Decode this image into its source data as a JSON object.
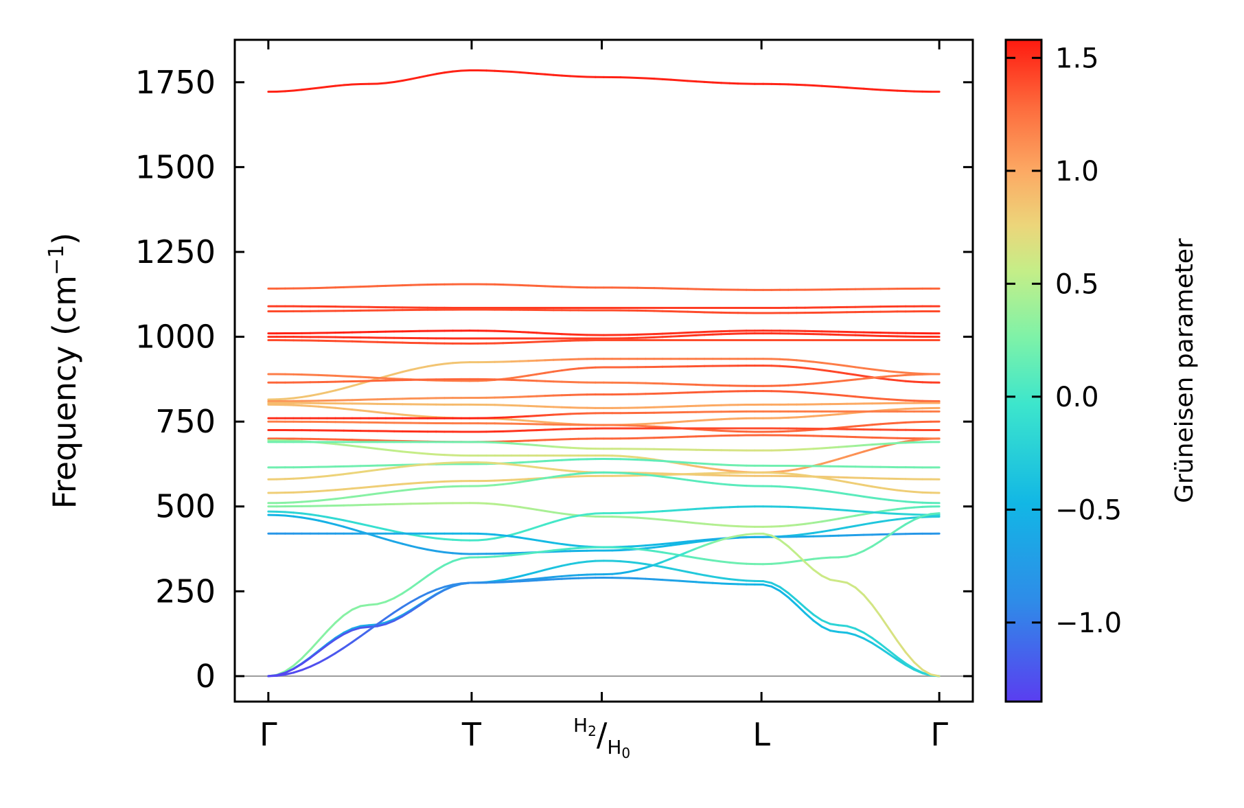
{
  "chart_data": {
    "type": "line",
    "title": "",
    "xlabel": "",
    "ylabel": "Frequency (cm",
    "ylabel_superscript": "−1",
    "ylabel_close": ")",
    "ylim": [
      -75,
      1875
    ],
    "yticks": [
      0,
      250,
      500,
      750,
      1000,
      1250,
      1500,
      1750
    ],
    "ytick_labels": [
      "0",
      "250",
      "500",
      "750",
      "1000",
      "1250",
      "1500",
      "1750"
    ],
    "xlim": [
      -0.05,
      1.05
    ],
    "x_labels": [
      {
        "pos": 0.0,
        "text": "Γ"
      },
      {
        "pos": 0.303,
        "text": "T"
      },
      {
        "pos": 0.497,
        "main": "H",
        "sub": "2",
        "slash": "/",
        "main2": "H",
        "sub2": "0"
      },
      {
        "pos": 0.735,
        "text": "L"
      },
      {
        "pos": 1.0,
        "text": "Γ"
      }
    ],
    "zero_line": 0,
    "colorbar": {
      "label": "Grüneisen parameter",
      "range": [
        -1.35,
        1.58
      ],
      "ticks": [
        -1.0,
        -0.5,
        0.0,
        0.5,
        1.0,
        1.5
      ],
      "tick_labels": [
        "−1.0",
        "−0.5",
        "0.0",
        "0.5",
        "1.0",
        "1.5"
      ],
      "colormap": "rainbow"
    },
    "series": [
      {
        "name": "band-top",
        "x": [
          0,
          0.15,
          0.303,
          0.5,
          0.735,
          1.0
        ],
        "y": [
          1722,
          1745,
          1785,
          1765,
          1745,
          1722
        ],
        "g": [
          1.55,
          1.55,
          1.55,
          1.55,
          1.55,
          1.55
        ]
      },
      {
        "name": "band-1140",
        "x": [
          0,
          0.303,
          0.5,
          0.735,
          1.0
        ],
        "y": [
          1142,
          1155,
          1145,
          1138,
          1142
        ],
        "g": [
          1.3,
          1.3,
          1.3,
          1.3,
          1.3
        ]
      },
      {
        "name": "band-1090",
        "x": [
          0,
          0.303,
          0.5,
          0.735,
          1.0
        ],
        "y": [
          1090,
          1085,
          1085,
          1085,
          1090
        ],
        "g": [
          1.45,
          1.45,
          1.45,
          1.45,
          1.45
        ]
      },
      {
        "name": "band-1075",
        "x": [
          0,
          0.303,
          0.5,
          0.735,
          1.0
        ],
        "y": [
          1075,
          1080,
          1078,
          1070,
          1075
        ],
        "g": [
          1.4,
          1.4,
          1.4,
          1.4,
          1.4
        ]
      },
      {
        "name": "band-1010",
        "x": [
          0,
          0.303,
          0.5,
          0.735,
          1.0
        ],
        "y": [
          1010,
          1018,
          1005,
          1018,
          1010
        ],
        "g": [
          1.55,
          1.55,
          1.5,
          1.5,
          1.55
        ]
      },
      {
        "name": "band-1000",
        "x": [
          0,
          0.303,
          0.5,
          0.735,
          1.0
        ],
        "y": [
          1000,
          995,
          995,
          1010,
          1000
        ],
        "g": [
          1.5,
          1.5,
          1.45,
          1.5,
          1.5
        ]
      },
      {
        "name": "band-990",
        "x": [
          0,
          0.303,
          0.5,
          0.735,
          1.0
        ],
        "y": [
          990,
          980,
          990,
          990,
          990
        ],
        "g": [
          1.4,
          1.4,
          1.4,
          1.4,
          1.4
        ]
      },
      {
        "name": "band-930",
        "x": [
          0,
          0.303,
          0.5,
          0.735,
          1.0
        ],
        "y": [
          815,
          925,
          935,
          935,
          890
        ],
        "g": [
          0.85,
          0.85,
          1.2,
          1.2,
          1.2
        ]
      },
      {
        "name": "band-890",
        "x": [
          0,
          0.303,
          0.5,
          0.735,
          1.0
        ],
        "y": [
          890,
          870,
          910,
          915,
          865
        ],
        "g": [
          1.2,
          1.2,
          1.3,
          1.4,
          1.45
        ]
      },
      {
        "name": "band-865",
        "x": [
          0,
          0.303,
          0.5,
          0.735,
          1.0
        ],
        "y": [
          865,
          875,
          865,
          855,
          890
        ],
        "g": [
          1.3,
          1.3,
          1.2,
          1.3,
          1.2
        ]
      },
      {
        "name": "band-810",
        "x": [
          0,
          0.303,
          0.5,
          0.735,
          1.0
        ],
        "y": [
          810,
          820,
          830,
          840,
          810
        ],
        "g": [
          1.1,
          1.1,
          1.3,
          1.35,
          1.3
        ]
      },
      {
        "name": "band-805",
        "x": [
          0,
          0.303,
          0.5,
          0.735,
          1.0
        ],
        "y": [
          805,
          800,
          790,
          800,
          805
        ],
        "g": [
          0.9,
          0.9,
          1.0,
          1.0,
          1.0
        ]
      },
      {
        "name": "band-795",
        "x": [
          0,
          0.303,
          0.5,
          0.735,
          1.0
        ],
        "y": [
          800,
          760,
          740,
          760,
          790
        ],
        "g": [
          0.9,
          0.9,
          1.0,
          1.0,
          1.0
        ]
      },
      {
        "name": "band-760",
        "x": [
          0,
          0.303,
          0.5,
          0.735,
          1.0
        ],
        "y": [
          760,
          760,
          775,
          780,
          780
        ],
        "g": [
          1.5,
          1.55,
          1.3,
          1.2,
          1.2
        ]
      },
      {
        "name": "band-750",
        "x": [
          0,
          0.303,
          0.5,
          0.735,
          1.0
        ],
        "y": [
          750,
          745,
          740,
          720,
          750
        ],
        "g": [
          1.2,
          1.2,
          1.2,
          1.3,
          1.3
        ]
      },
      {
        "name": "band-725",
        "x": [
          0,
          0.303,
          0.5,
          0.735,
          1.0
        ],
        "y": [
          725,
          720,
          730,
          730,
          725
        ],
        "g": [
          1.5,
          1.5,
          1.45,
          1.4,
          1.4
        ]
      },
      {
        "name": "band-700",
        "x": [
          0,
          0.303,
          0.5,
          0.735,
          1.0
        ],
        "y": [
          700,
          690,
          700,
          710,
          700
        ],
        "g": [
          1.3,
          1.3,
          1.3,
          1.3,
          1.3
        ]
      },
      {
        "name": "band-695",
        "x": [
          0,
          0.303,
          0.5,
          0.735,
          1.0
        ],
        "y": [
          695,
          650,
          650,
          600,
          700
        ],
        "g": [
          0.4,
          0.6,
          0.7,
          1.0,
          1.2
        ]
      },
      {
        "name": "band-690",
        "x": [
          0,
          0.303,
          0.5,
          0.735,
          1.0
        ],
        "y": [
          690,
          690,
          670,
          665,
          690
        ],
        "g": [
          0.2,
          0.2,
          0.6,
          0.65,
          0.2
        ]
      },
      {
        "name": "band-610",
        "x": [
          0,
          0.303,
          0.5,
          0.735,
          1.0
        ],
        "y": [
          615,
          625,
          640,
          620,
          615
        ],
        "g": [
          0.2,
          0.2,
          0.1,
          0.2,
          0.2
        ]
      },
      {
        "name": "band-580",
        "x": [
          0,
          0.303,
          0.5,
          0.735,
          1.0
        ],
        "y": [
          580,
          630,
          600,
          590,
          580
        ],
        "g": [
          0.8,
          0.7,
          0.8,
          0.85,
          0.8
        ]
      },
      {
        "name": "band-540",
        "x": [
          0,
          0.303,
          0.5,
          0.735,
          1.0
        ],
        "y": [
          540,
          575,
          590,
          600,
          540
        ],
        "g": [
          0.8,
          0.8,
          0.8,
          0.8,
          0.8
        ]
      },
      {
        "name": "band-510",
        "x": [
          0,
          0.303,
          0.5,
          0.735,
          1.0
        ],
        "y": [
          510,
          560,
          600,
          560,
          510
        ],
        "g": [
          0.3,
          0.3,
          0.1,
          0.1,
          0.1
        ]
      },
      {
        "name": "band-500",
        "x": [
          0,
          0.303,
          0.5,
          0.735,
          1.0
        ],
        "y": [
          500,
          510,
          470,
          440,
          500
        ],
        "g": [
          0.3,
          0.5,
          0.4,
          0.5,
          0.1
        ]
      },
      {
        "name": "band-485",
        "x": [
          0,
          0.303,
          0.5,
          0.735,
          1.0
        ],
        "y": [
          485,
          400,
          480,
          500,
          475
        ],
        "g": [
          -0.2,
          0.0,
          0.0,
          -0.3,
          -0.2
        ]
      },
      {
        "name": "band-470",
        "x": [
          0,
          0.303,
          0.5,
          0.735,
          1.0
        ],
        "y": [
          475,
          360,
          370,
          410,
          470
        ],
        "g": [
          -0.5,
          -0.7,
          -0.5,
          -0.4,
          -0.3
        ]
      },
      {
        "name": "band-420",
        "x": [
          0,
          0.303,
          0.5,
          0.735,
          1.0
        ],
        "y": [
          420,
          420,
          380,
          410,
          420
        ],
        "g": [
          -0.8,
          -0.5,
          -0.4,
          -0.6,
          -0.8
        ]
      },
      {
        "name": "band-acoustic-high",
        "x": [
          0,
          0.15,
          0.303,
          0.5,
          0.735,
          0.85,
          1.0
        ],
        "y": [
          0,
          210,
          350,
          380,
          330,
          350,
          480
        ],
        "g": [
          0.3,
          0.3,
          0.1,
          0.0,
          0.2,
          0.2,
          0.1
        ]
      },
      {
        "name": "band-acoustic-mid",
        "x": [
          0,
          0.15,
          0.303,
          0.5,
          0.735,
          0.85,
          1.0
        ],
        "y": [
          0,
          150,
          275,
          340,
          280,
          150,
          0
        ],
        "g": [
          -0.6,
          -0.6,
          -0.5,
          -0.3,
          -0.3,
          -0.2,
          -0.2
        ]
      },
      {
        "name": "band-acoustic-low",
        "x": [
          0,
          0.15,
          0.303,
          0.5,
          0.735,
          0.85,
          1.0
        ],
        "y": [
          0,
          145,
          275,
          290,
          270,
          130,
          0
        ],
        "g": [
          -1.3,
          -1.2,
          -0.9,
          -0.8,
          -0.5,
          -0.4,
          -0.2
        ]
      },
      {
        "name": "band-acoustic-la",
        "x": [
          0,
          0.303,
          0.5,
          0.735,
          0.85,
          1.0
        ],
        "y": [
          0,
          275,
          300,
          420,
          280,
          0
        ],
        "g": [
          -1.3,
          -0.9,
          -0.6,
          0.5,
          0.6,
          0.7
        ]
      }
    ]
  }
}
